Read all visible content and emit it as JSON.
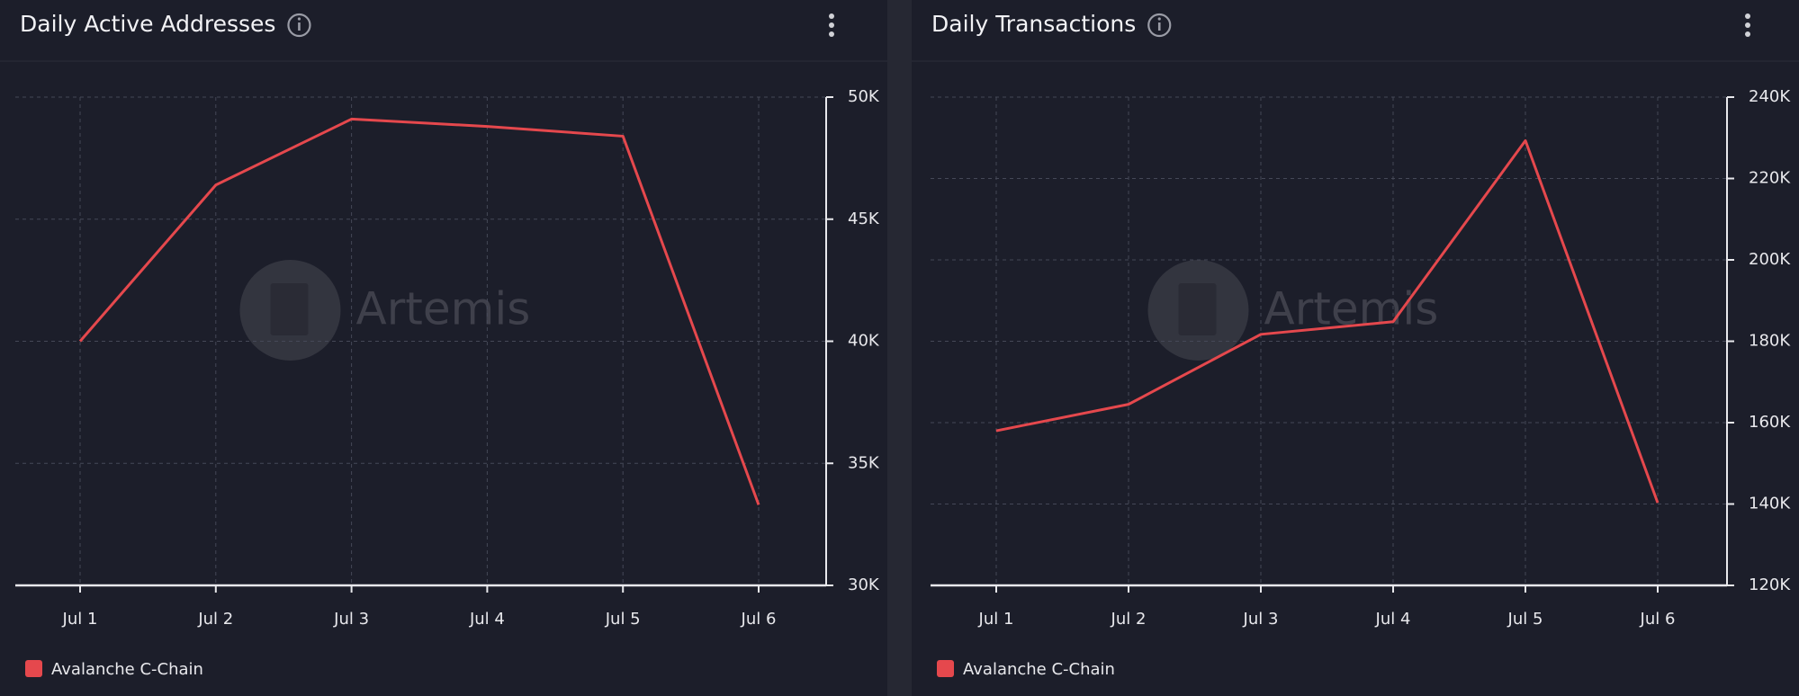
{
  "chart_data": [
    {
      "type": "line",
      "title": "Daily Active Addresses",
      "watermark": "Artemis",
      "categories": [
        "Jul 1",
        "Jul 2",
        "Jul 3",
        "Jul 4",
        "Jul 5",
        "Jul 6"
      ],
      "series": [
        {
          "name": "Avalanche C-Chain",
          "color": "#e5484d",
          "values": [
            40000,
            46400,
            49100,
            48800,
            48400,
            33300
          ]
        }
      ],
      "ylim": [
        30000,
        50000
      ],
      "yticks": [
        {
          "value": 30000,
          "label": "30K"
        },
        {
          "value": 35000,
          "label": "35K"
        },
        {
          "value": 40000,
          "label": "40K"
        },
        {
          "value": 45000,
          "label": "45K"
        },
        {
          "value": 50000,
          "label": "50K"
        }
      ],
      "grid": true
    },
    {
      "type": "line",
      "title": "Daily Transactions",
      "watermark": "Artemis",
      "categories": [
        "Jul 1",
        "Jul 2",
        "Jul 3",
        "Jul 4",
        "Jul 5",
        "Jul 6"
      ],
      "series": [
        {
          "name": "Avalanche C-Chain",
          "color": "#e5484d",
          "values": [
            158000,
            164500,
            181700,
            184800,
            229300,
            140300
          ]
        }
      ],
      "ylim": [
        120000,
        240000
      ],
      "yticks": [
        {
          "value": 120000,
          "label": "120K"
        },
        {
          "value": 140000,
          "label": "140K"
        },
        {
          "value": 160000,
          "label": "160K"
        },
        {
          "value": 180000,
          "label": "180K"
        },
        {
          "value": 200000,
          "label": "200K"
        },
        {
          "value": 220000,
          "label": "220K"
        },
        {
          "value": 240000,
          "label": "240K"
        }
      ],
      "grid": true
    }
  ]
}
